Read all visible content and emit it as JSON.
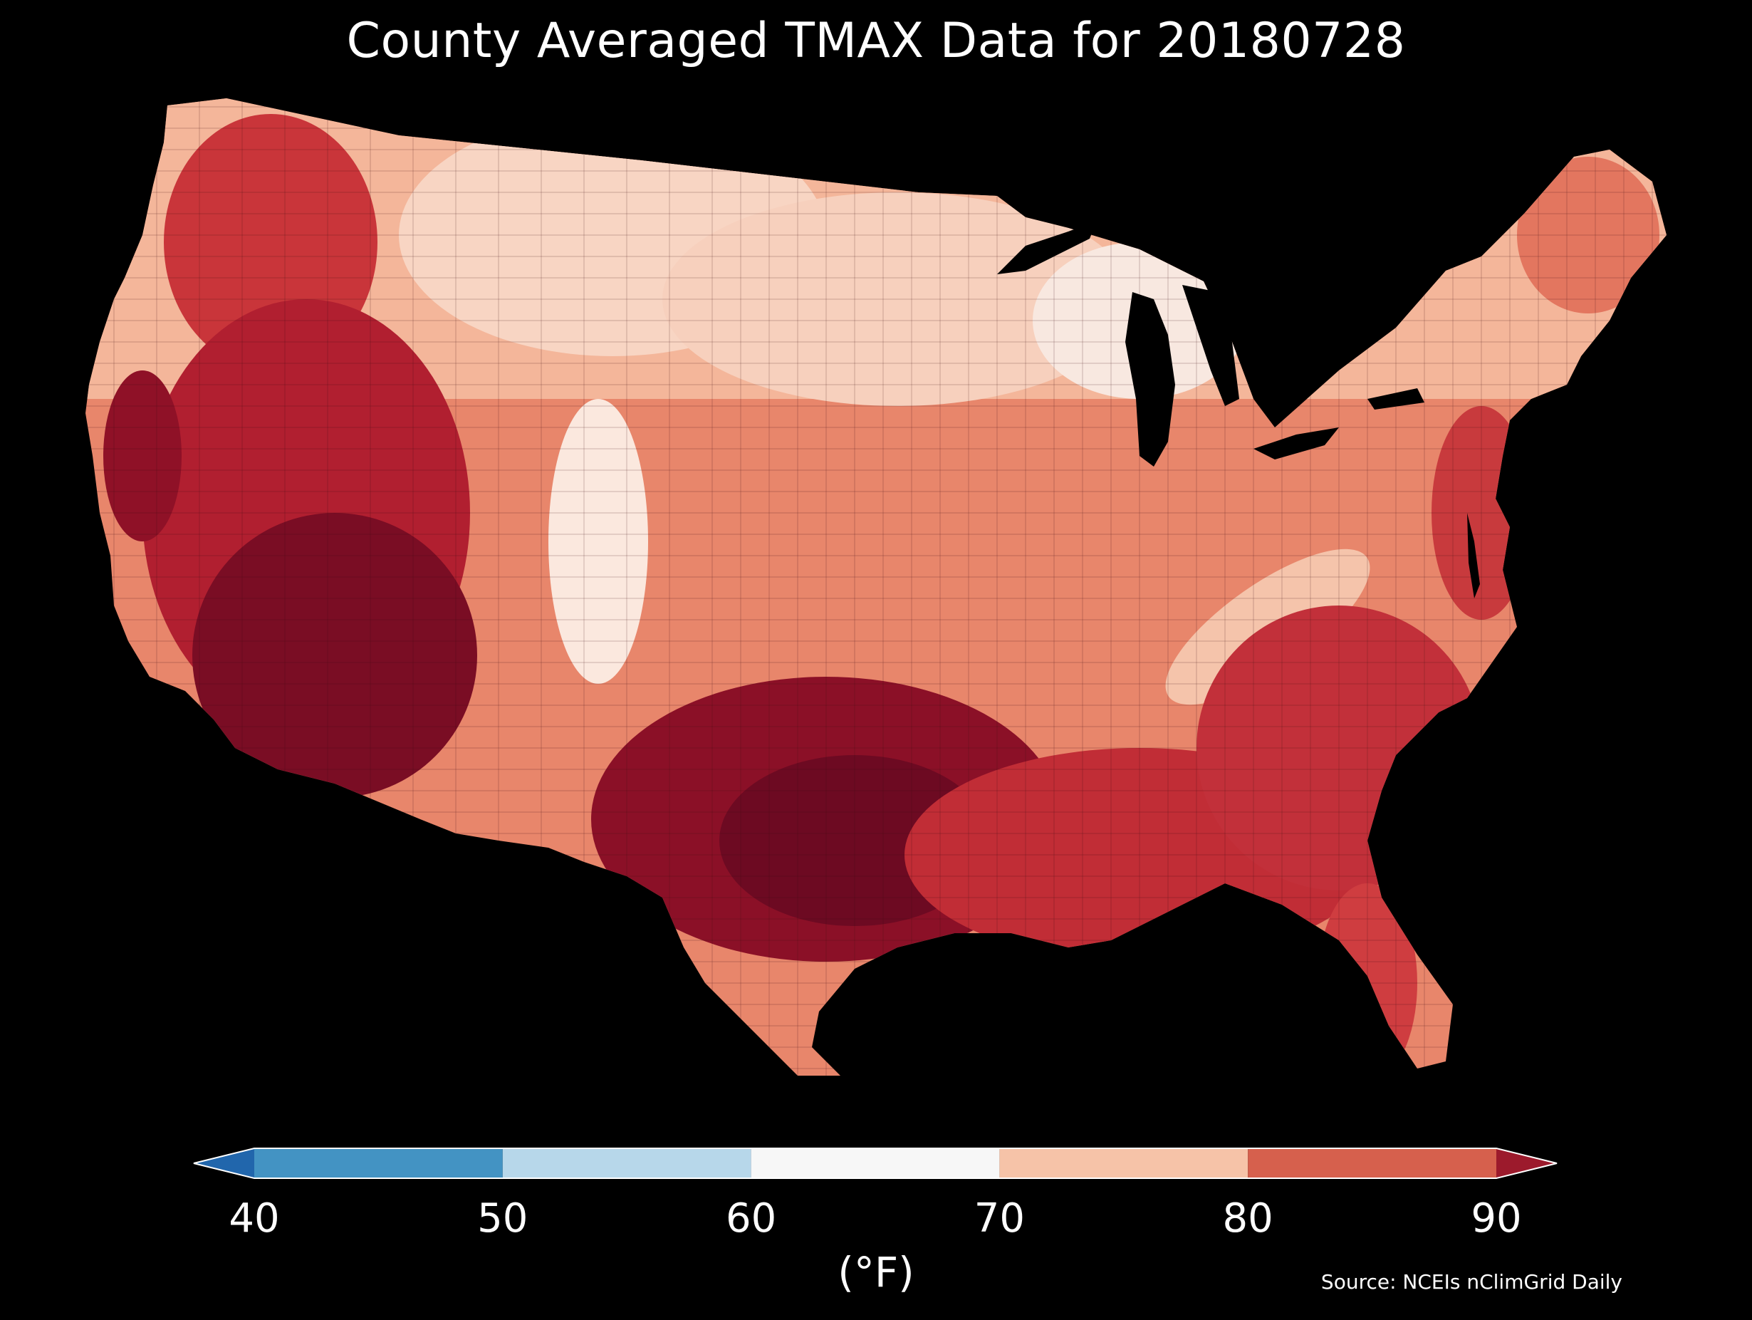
{
  "title": "County Averaged TMAX Data for 20180728",
  "map": {
    "region": "contiguous-us-counties",
    "background": "#000000",
    "hot_regions": [
      "desert-southwest",
      "central-california",
      "texas",
      "gulf-coast",
      "southeast"
    ],
    "mild_regions": [
      "northern-plains",
      "upper-midwest",
      "rocky-mountains",
      "great-lakes"
    ]
  },
  "colorbar": {
    "ticks": [
      "40",
      "50",
      "60",
      "70",
      "80",
      "90"
    ],
    "unit": "(°F)",
    "extend": "both",
    "bins": [
      {
        "range": [
          40,
          50
        ],
        "color": "#4393c3"
      },
      {
        "range": [
          50,
          60
        ],
        "color": "#b7d7ea"
      },
      {
        "range": [
          60,
          70
        ],
        "color": "#f7f7f7"
      },
      {
        "range": [
          70,
          80
        ],
        "color": "#f6c3a8"
      },
      {
        "range": [
          80,
          90
        ],
        "color": "#d6604d"
      }
    ],
    "under_color": "#2166ac",
    "over_color": "#9c1a2c"
  },
  "source": "Source: NCEIs nClimGrid Daily"
}
